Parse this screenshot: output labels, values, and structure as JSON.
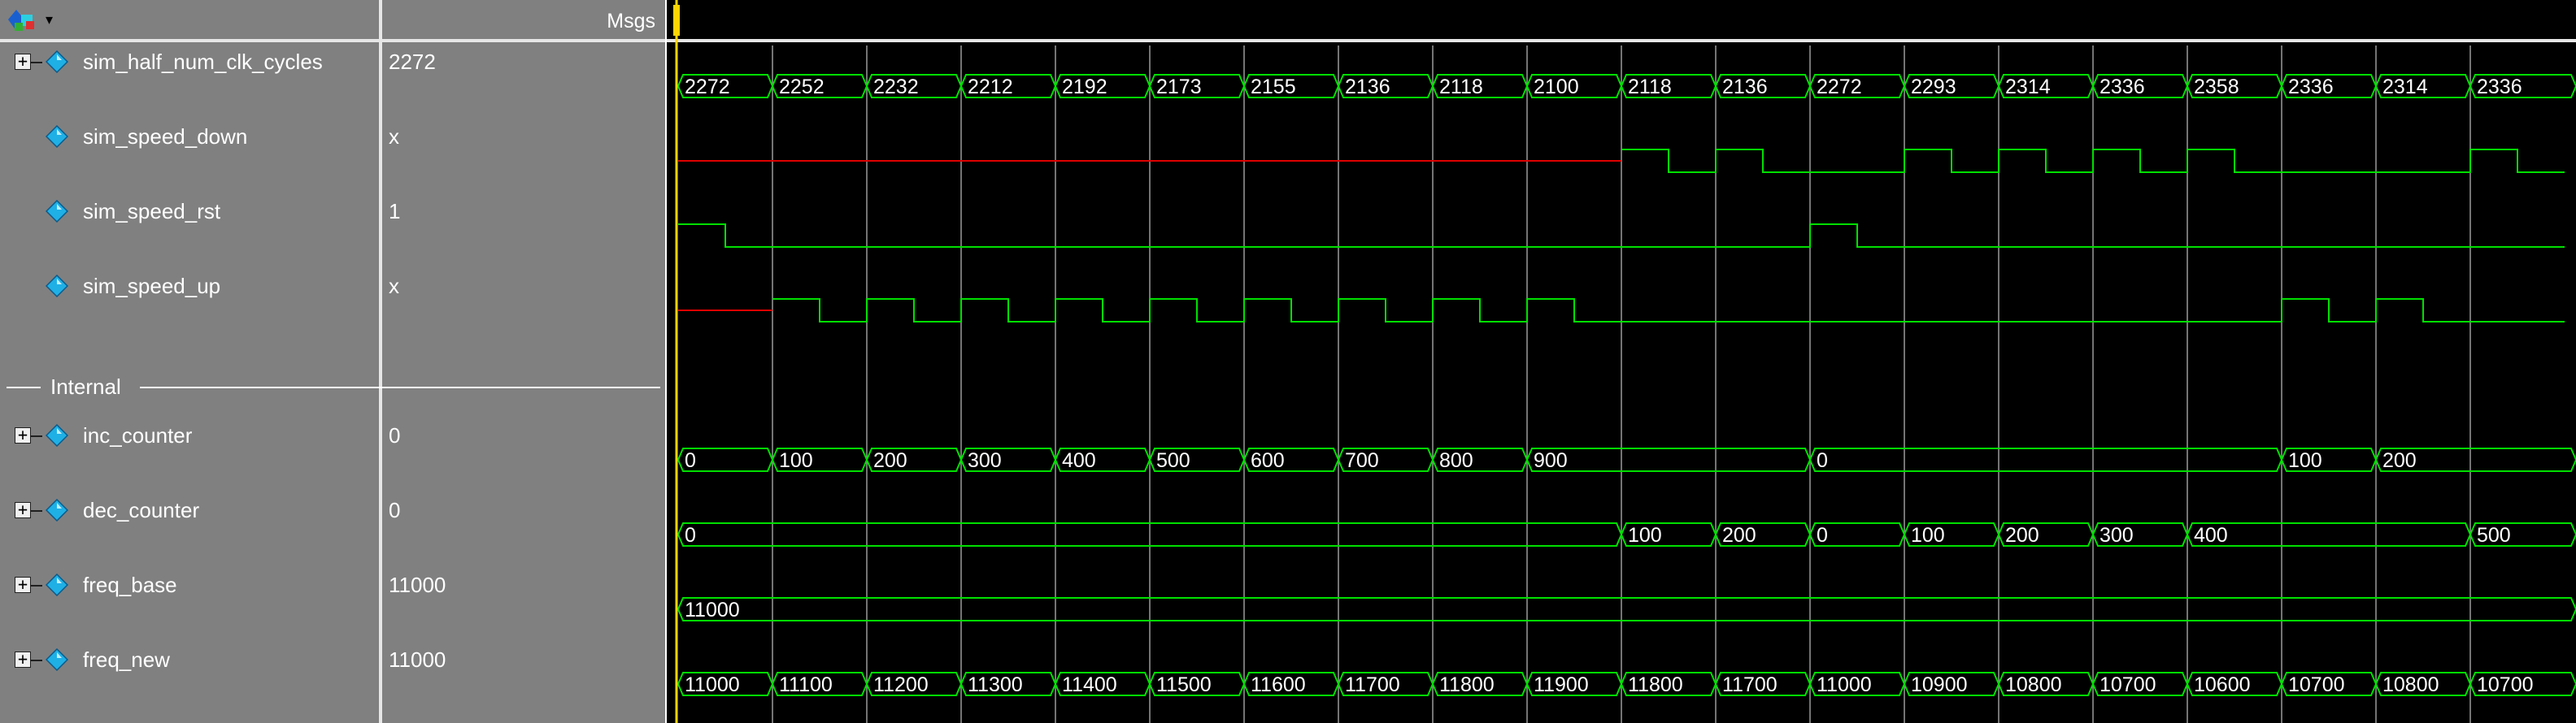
{
  "header": {
    "msgs_label": "Msgs"
  },
  "signals": [
    {
      "id": "sim_half_num_clk_cycles",
      "name": "sim_half_num_clk_cycles",
      "value": "2272",
      "expandable": true
    },
    {
      "id": "sim_speed_down",
      "name": "sim_speed_down",
      "value": "x",
      "expandable": false
    },
    {
      "id": "sim_speed_rst",
      "name": "sim_speed_rst",
      "value": "1",
      "expandable": false
    },
    {
      "id": "sim_speed_up",
      "name": "sim_speed_up",
      "value": "x",
      "expandable": false
    },
    {
      "id": "inc_counter",
      "name": "inc_counter",
      "value": "0",
      "expandable": true
    },
    {
      "id": "dec_counter",
      "name": "dec_counter",
      "value": "0",
      "expandable": true
    },
    {
      "id": "freq_base",
      "name": "freq_base",
      "value": "11000",
      "expandable": true
    },
    {
      "id": "freq_new",
      "name": "freq_new",
      "value": "11000",
      "expandable": true
    }
  ],
  "divider": {
    "label": "Internal"
  },
  "waves": {
    "sim_half_num_clk_cycles": [
      "2272",
      "2252",
      "2232",
      "2212",
      "2192",
      "2173",
      "2155",
      "2136",
      "2118",
      "2100",
      "2118",
      "2136",
      "2272",
      "2293",
      "2314",
      "2336",
      "2358",
      "2336",
      "2314",
      "2336"
    ],
    "inc_counter": [
      {
        "start": 0,
        "label": "0"
      },
      {
        "start": 1,
        "label": "100"
      },
      {
        "start": 2,
        "label": "200"
      },
      {
        "start": 3,
        "label": "300"
      },
      {
        "start": 4,
        "label": "400"
      },
      {
        "start": 5,
        "label": "500"
      },
      {
        "start": 6,
        "label": "600"
      },
      {
        "start": 7,
        "label": "700"
      },
      {
        "start": 8,
        "label": "800"
      },
      {
        "start": 9,
        "label": "900"
      },
      {
        "start": 12,
        "label": "0"
      },
      {
        "start": 17,
        "label": "100"
      },
      {
        "start": 18,
        "label": "200"
      }
    ],
    "dec_counter": [
      {
        "start": 0,
        "label": "0"
      },
      {
        "start": 10,
        "label": "100"
      },
      {
        "start": 11,
        "label": "200"
      },
      {
        "start": 12,
        "label": "0"
      },
      {
        "start": 13,
        "label": "100"
      },
      {
        "start": 14,
        "label": "200"
      },
      {
        "start": 15,
        "label": "300"
      },
      {
        "start": 16,
        "label": "400"
      },
      {
        "start": 19,
        "label": "500"
      }
    ],
    "freq_base": [
      {
        "start": 0,
        "label": "11000"
      }
    ],
    "freq_new": [
      "11000",
      "11100",
      "11200",
      "11300",
      "11400",
      "11500",
      "11600",
      "11700",
      "11800",
      "11900",
      "11800",
      "11700",
      "11000",
      "10900",
      "10800",
      "10700",
      "10600",
      "10700",
      "10800",
      "10700"
    ],
    "sim_speed_up_pulses": [
      1,
      2,
      3,
      4,
      5,
      6,
      7,
      8,
      9,
      17,
      18
    ],
    "sim_speed_down_pulses": [
      10,
      11,
      13,
      14,
      15,
      16,
      19
    ],
    "sim_speed_rst_pulses": [
      0,
      12
    ],
    "sim_speed_up_unknown_until": 1,
    "sim_speed_down_unknown_until": 10
  },
  "colors": {
    "wave_green": "#00e000",
    "unknown_red": "#e00000",
    "grid": "#9a9a9a",
    "cursor": "#ffd400",
    "panel_gray": "#808080",
    "icon_cyan": "#1fb0e6"
  },
  "icons": {
    "signal": "diamond-icon",
    "toolbar": "wave-window-menu-icon",
    "expand": "plus-box-icon"
  }
}
